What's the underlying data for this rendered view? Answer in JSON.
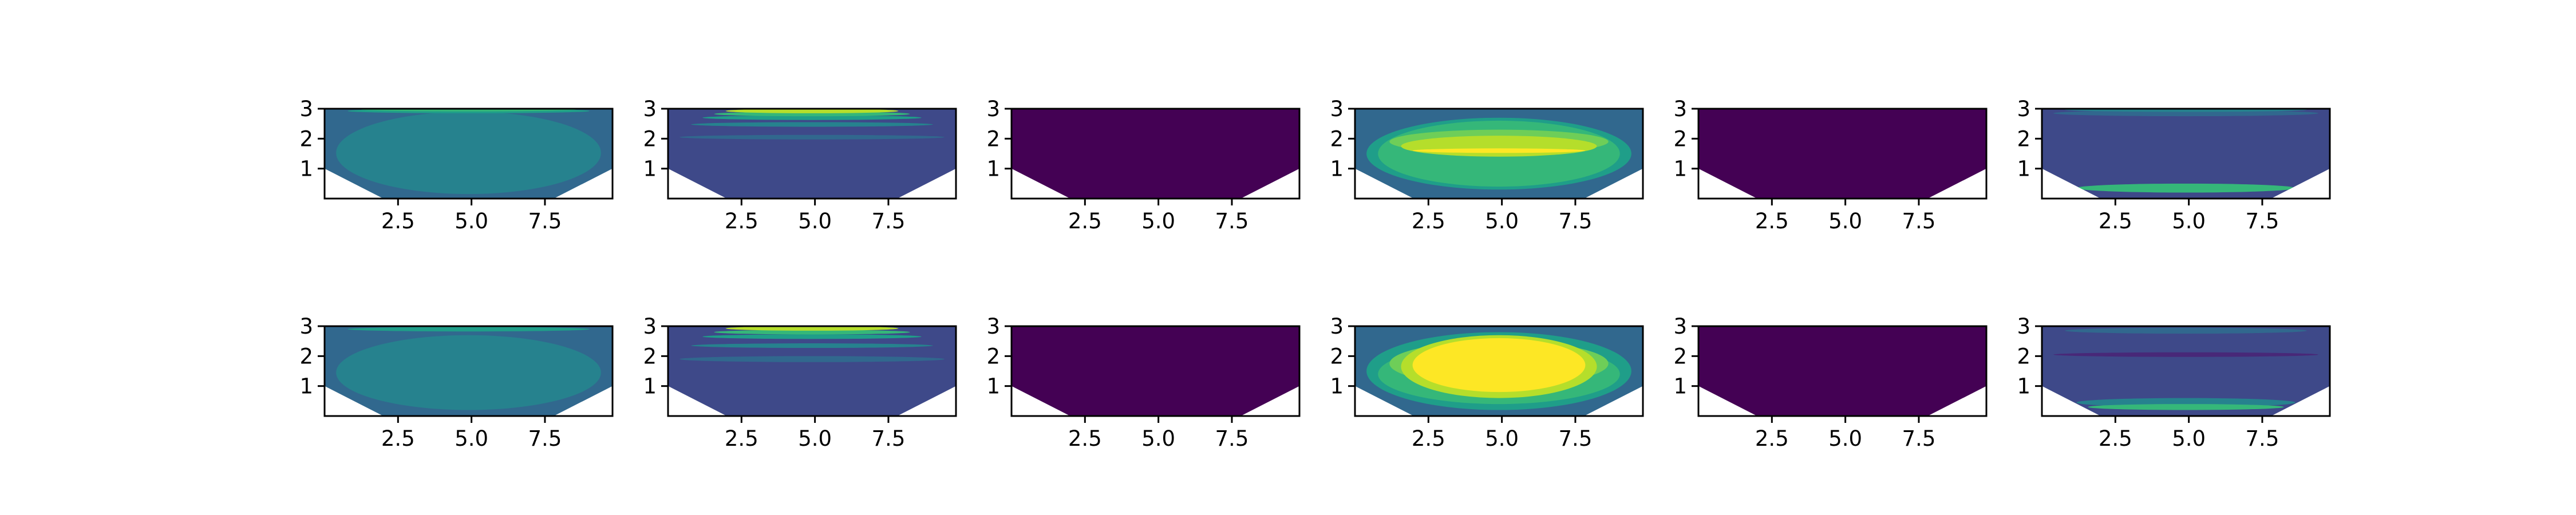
{
  "figure": {
    "background": "#ffffff",
    "colormap": [
      "#440154",
      "#482878",
      "#3e4989",
      "#31688e",
      "#26828e",
      "#1f9e89",
      "#35b779",
      "#6ece58",
      "#b5de2b",
      "#fde725"
    ]
  },
  "chart_data": [
    {
      "type": "heatmap",
      "panel": 1,
      "row": 1,
      "col": 1,
      "title": "",
      "xlabel": "",
      "ylabel": "",
      "xlim": [
        0,
        9.8
      ],
      "ylim": [
        0,
        3
      ],
      "xticks": [
        "2.5",
        "5.0",
        "7.5"
      ],
      "yticks": [
        "1",
        "2",
        "3"
      ],
      "levels": [
        {
          "color": "#31688e",
          "from": [
            0.05,
            0.8
          ],
          "to": [
            0.05,
            1.55
          ]
        },
        {
          "color": "#26828e",
          "from": [
            0.15,
            1.0
          ],
          "to": [
            0.15,
            2.9
          ]
        },
        {
          "color": "#1f9e89",
          "from": [
            2.95,
            2.95
          ],
          "to": [
            2.9,
            2.9
          ]
        },
        {
          "color": "#35b779",
          "from": [
            2.98,
            2.99
          ],
          "to": [
            2.98,
            2.99
          ]
        }
      ]
    },
    {
      "type": "heatmap",
      "panel": 2,
      "row": 1,
      "col": 2,
      "title": "",
      "xlabel": "",
      "ylabel": "",
      "xlim": [
        0,
        9.8
      ],
      "ylim": [
        0,
        3
      ],
      "xticks": [
        "2.5",
        "5.0",
        "7.5"
      ],
      "yticks": [
        "1",
        "2",
        "3"
      ],
      "levels": [
        {
          "color": "#3e4989",
          "from": [
            0.05,
            1.6
          ],
          "to": [
            0.05,
            1.6
          ]
        },
        {
          "color": "#31688e",
          "from": [
            2.0,
            2.1
          ],
          "to": [
            2.0,
            2.1
          ]
        },
        {
          "color": "#26828e",
          "from": [
            2.45,
            2.5
          ],
          "to": [
            2.45,
            2.5
          ]
        },
        {
          "color": "#1f9e89",
          "from": [
            2.65,
            2.75
          ],
          "to": [
            2.65,
            2.75
          ]
        },
        {
          "color": "#35b779",
          "from": [
            2.8,
            2.85
          ],
          "to": [
            2.8,
            2.85
          ]
        },
        {
          "color": "#b5de2b",
          "from": [
            2.9,
            2.95
          ],
          "to": [
            2.9,
            2.95
          ]
        }
      ]
    },
    {
      "type": "heatmap",
      "panel": 3,
      "row": 1,
      "col": 3,
      "title": "",
      "xlabel": "",
      "ylabel": "",
      "xlim": [
        0,
        9.8
      ],
      "ylim": [
        0,
        3
      ],
      "xticks": [
        "2.5",
        "5.0",
        "7.5"
      ],
      "yticks": [
        "1",
        "2",
        "3"
      ],
      "levels": [
        {
          "color": "#440154",
          "from": [
            0.0,
            3.0
          ],
          "to": [
            0.0,
            3.0
          ]
        }
      ]
    },
    {
      "type": "heatmap",
      "panel": 4,
      "row": 1,
      "col": 4,
      "title": "",
      "xlabel": "",
      "ylabel": "",
      "xlim": [
        0,
        9.8
      ],
      "ylim": [
        0,
        3
      ],
      "xticks": [
        "2.5",
        "5.0",
        "7.5"
      ],
      "yticks": [
        "1",
        "2",
        "3"
      ],
      "levels": [
        {
          "color": "#31688e",
          "from": [
            0.05,
            0.6
          ],
          "to": [
            0.05,
            0.6
          ]
        },
        {
          "color": "#1f9e89",
          "from": [
            0.3,
            2.7
          ],
          "to": [
            0.3,
            2.7
          ]
        },
        {
          "color": "#35b779",
          "from": [
            0.4,
            2.6
          ],
          "to": [
            0.4,
            2.6
          ]
        },
        {
          "color": "#6ece58",
          "from": [
            1.5,
            2.3
          ],
          "to": [
            1.5,
            2.3
          ]
        },
        {
          "color": "#b5de2b",
          "from": [
            1.4,
            2.1
          ],
          "to": [
            1.4,
            2.1
          ]
        },
        {
          "color": "#fde725",
          "from": [
            1.55,
            1.65
          ],
          "to": [
            1.55,
            1.65
          ]
        }
      ]
    },
    {
      "type": "heatmap",
      "panel": 5,
      "row": 1,
      "col": 5,
      "title": "",
      "xlabel": "",
      "ylabel": "",
      "xlim": [
        0,
        9.8
      ],
      "ylim": [
        0,
        3
      ],
      "xticks": [
        "2.5",
        "5.0",
        "7.5"
      ],
      "yticks": [
        "1",
        "2",
        "3"
      ],
      "levels": [
        {
          "color": "#440154",
          "from": [
            0.0,
            3.0
          ],
          "to": [
            0.0,
            3.0
          ]
        }
      ]
    },
    {
      "type": "heatmap",
      "panel": 6,
      "row": 1,
      "col": 6,
      "title": "",
      "xlabel": "",
      "ylabel": "",
      "xlim": [
        0,
        9.8
      ],
      "ylim": [
        0,
        3
      ],
      "xticks": [
        "2.5",
        "5.0",
        "7.5"
      ],
      "yticks": [
        "1",
        "2",
        "3"
      ],
      "levels": [
        {
          "color": "#3e4989",
          "from": [
            0.05,
            2.9
          ],
          "to": [
            0.05,
            2.9
          ]
        },
        {
          "color": "#31688e",
          "from": [
            2.75,
            2.95
          ],
          "to": [
            2.75,
            2.95
          ]
        },
        {
          "color": "#26828e",
          "from": [
            2.95,
            2.99
          ],
          "to": [
            2.95,
            2.99
          ]
        },
        {
          "color": "#35b779",
          "from": [
            0.2,
            0.5
          ],
          "to": [
            0.2,
            0.5
          ]
        }
      ]
    },
    {
      "type": "heatmap",
      "panel": 7,
      "row": 2,
      "col": 1,
      "title": "",
      "xlabel": "",
      "ylabel": "",
      "xlim": [
        0,
        9.8
      ],
      "ylim": [
        0,
        3
      ],
      "xticks": [
        "2.5",
        "5.0",
        "7.5"
      ],
      "yticks": [
        "1",
        "2",
        "3"
      ],
      "levels": [
        {
          "color": "#31688e",
          "from": [
            0.05,
            0.9
          ],
          "to": [
            0.05,
            1.0
          ]
        },
        {
          "color": "#26828e",
          "from": [
            0.2,
            1.1
          ],
          "to": [
            0.2,
            2.7
          ]
        },
        {
          "color": "#1f9e89",
          "from": [
            2.9,
            2.9
          ],
          "to": [
            2.9,
            2.9
          ]
        }
      ]
    },
    {
      "type": "heatmap",
      "panel": 8,
      "row": 2,
      "col": 2,
      "title": "",
      "xlabel": "",
      "ylabel": "",
      "xlim": [
        0,
        9.8
      ],
      "ylim": [
        0,
        3
      ],
      "xticks": [
        "2.5",
        "5.0",
        "7.5"
      ],
      "yticks": [
        "1",
        "2",
        "3"
      ],
      "levels": [
        {
          "color": "#3e4989",
          "from": [
            0.05,
            1.5
          ],
          "to": [
            0.05,
            1.5
          ]
        },
        {
          "color": "#31688e",
          "from": [
            1.8,
            2.0
          ],
          "to": [
            1.8,
            2.0
          ]
        },
        {
          "color": "#26828e",
          "from": [
            2.3,
            2.4
          ],
          "to": [
            2.3,
            2.4
          ]
        },
        {
          "color": "#1f9e89",
          "from": [
            2.6,
            2.7
          ],
          "to": [
            2.6,
            2.7
          ]
        },
        {
          "color": "#35b779",
          "from": [
            2.75,
            2.85
          ],
          "to": [
            2.75,
            2.85
          ]
        },
        {
          "color": "#b5de2b",
          "from": [
            2.9,
            2.95
          ],
          "to": [
            2.9,
            2.95
          ]
        }
      ]
    },
    {
      "type": "heatmap",
      "panel": 9,
      "row": 2,
      "col": 3,
      "title": "",
      "xlabel": "",
      "ylabel": "",
      "xlim": [
        0,
        9.8
      ],
      "ylim": [
        0,
        3
      ],
      "xticks": [
        "2.5",
        "5.0",
        "7.5"
      ],
      "yticks": [
        "1",
        "2",
        "3"
      ],
      "levels": [
        {
          "color": "#440154",
          "from": [
            0.0,
            3.0
          ],
          "to": [
            0.0,
            3.0
          ]
        }
      ]
    },
    {
      "type": "heatmap",
      "panel": 10,
      "row": 2,
      "col": 4,
      "title": "",
      "xlabel": "",
      "ylabel": "",
      "xlim": [
        0,
        9.8
      ],
      "ylim": [
        0,
        3
      ],
      "xticks": [
        "2.5",
        "5.0",
        "7.5"
      ],
      "yticks": [
        "1",
        "2",
        "3"
      ],
      "levels": [
        {
          "color": "#31688e",
          "from": [
            0.05,
            0.5
          ],
          "to": [
            0.05,
            0.5
          ]
        },
        {
          "color": "#1f9e89",
          "from": [
            0.2,
            2.8
          ],
          "to": [
            0.2,
            2.8
          ]
        },
        {
          "color": "#35b779",
          "from": [
            0.4,
            2.4
          ],
          "to": [
            0.4,
            2.4
          ]
        },
        {
          "color": "#6ece58",
          "from": [
            1.0,
            2.5
          ],
          "to": [
            1.0,
            2.5
          ]
        },
        {
          "color": "#b5de2b",
          "from": [
            0.6,
            2.7
          ],
          "to": [
            0.6,
            2.7
          ]
        },
        {
          "color": "#fde725",
          "from": [
            0.8,
            2.6
          ],
          "to": [
            0.8,
            2.6
          ]
        }
      ]
    },
    {
      "type": "heatmap",
      "panel": 11,
      "row": 2,
      "col": 5,
      "title": "",
      "xlabel": "",
      "ylabel": "",
      "xlim": [
        0,
        9.8
      ],
      "ylim": [
        0,
        3
      ],
      "xticks": [
        "2.5",
        "5.0",
        "7.5"
      ],
      "yticks": [
        "1",
        "2",
        "3"
      ],
      "levels": [
        {
          "color": "#440154",
          "from": [
            0.0,
            3.0
          ],
          "to": [
            0.0,
            3.0
          ]
        }
      ]
    },
    {
      "type": "heatmap",
      "panel": 12,
      "row": 2,
      "col": 6,
      "title": "",
      "xlabel": "",
      "ylabel": "",
      "xlim": [
        0,
        9.8
      ],
      "ylim": [
        0,
        3
      ],
      "xticks": [
        "2.5",
        "5.0",
        "7.5"
      ],
      "yticks": [
        "1",
        "2",
        "3"
      ],
      "levels": [
        {
          "color": "#3e4989",
          "from": [
            0.05,
            2.9
          ],
          "to": [
            0.05,
            2.9
          ]
        },
        {
          "color": "#482878",
          "from": [
            2.0,
            2.1
          ],
          "to": [
            2.0,
            2.1
          ]
        },
        {
          "color": "#31688e",
          "from": [
            2.75,
            2.95
          ],
          "to": [
            2.75,
            2.95
          ]
        },
        {
          "color": "#26828e",
          "from": [
            0.3,
            0.6
          ],
          "to": [
            0.3,
            0.6
          ]
        },
        {
          "color": "#35b779",
          "from": [
            0.2,
            0.4
          ],
          "to": [
            0.2,
            0.4
          ]
        }
      ]
    }
  ]
}
